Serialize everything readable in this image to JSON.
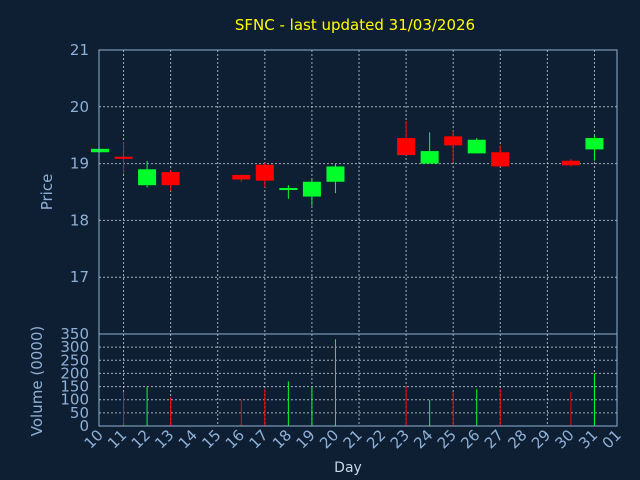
{
  "chart_data": {
    "type": "candlestick",
    "title": "SFNC - last updated 31/03/2026",
    "xlabel": "Day",
    "price_panel": {
      "ylabel": "Price",
      "ylim": [
        16.0,
        21.0
      ],
      "y_ticks": [
        17,
        18,
        19,
        20,
        21
      ],
      "grid": true
    },
    "volume_panel": {
      "ylabel": "Volume (0000)",
      "ylim": [
        0,
        350
      ],
      "y_ticks": [
        0,
        50,
        100,
        150,
        200,
        250,
        300,
        350
      ],
      "grid": true
    },
    "x_tick_labels": [
      "10",
      "11",
      "12",
      "13",
      "14",
      "15",
      "16",
      "17",
      "18",
      "19",
      "20",
      "21",
      "22",
      "23",
      "24",
      "25",
      "26",
      "27",
      "28",
      "29",
      "30",
      "31",
      "01"
    ],
    "up_color": "#00ff2a",
    "down_color": "#ff0000",
    "candles": [
      {
        "day": "10",
        "open": 19.2,
        "high": 19.26,
        "low": 19.2,
        "close": 19.26,
        "volume": 0
      },
      {
        "day": "11",
        "open": 19.12,
        "high": 19.38,
        "low": 18.82,
        "close": 19.1,
        "volume": 130
      },
      {
        "day": "12",
        "open": 18.62,
        "high": 19.05,
        "low": 18.58,
        "close": 18.9,
        "volume": 150
      },
      {
        "day": "13",
        "open": 18.85,
        "high": 18.88,
        "low": 18.52,
        "close": 18.62,
        "volume": 110
      },
      {
        "day": "16",
        "open": 18.8,
        "high": 18.8,
        "low": 18.68,
        "close": 18.72,
        "volume": 100
      },
      {
        "day": "17",
        "open": 18.98,
        "high": 19.02,
        "low": 18.58,
        "close": 18.7,
        "volume": 140
      },
      {
        "day": "18",
        "open": 18.56,
        "high": 18.62,
        "low": 18.38,
        "close": 18.57,
        "volume": 170
      },
      {
        "day": "19",
        "open": 18.42,
        "high": 18.72,
        "low": 18.26,
        "close": 18.68,
        "volume": 150
      },
      {
        "day": "20",
        "open": 18.68,
        "high": 19.0,
        "low": 18.48,
        "close": 18.95,
        "volume": 330
      },
      {
        "day": "23",
        "open": 19.45,
        "high": 19.75,
        "low": 19.15,
        "close": 19.15,
        "volume": 150
      },
      {
        "day": "24",
        "open": 19.0,
        "high": 19.55,
        "low": 19.0,
        "close": 19.22,
        "volume": 100
      },
      {
        "day": "25",
        "open": 19.48,
        "high": 19.58,
        "low": 19.02,
        "close": 19.32,
        "volume": 130
      },
      {
        "day": "26",
        "open": 19.18,
        "high": 19.45,
        "low": 19.18,
        "close": 19.42,
        "volume": 140
      },
      {
        "day": "27",
        "open": 19.2,
        "high": 19.32,
        "low": 18.95,
        "close": 18.95,
        "volume": 140
      },
      {
        "day": "30",
        "open": 19.05,
        "high": 19.08,
        "low": 18.95,
        "close": 18.97,
        "volume": 130
      },
      {
        "day": "31",
        "open": 19.25,
        "high": 19.5,
        "low": 19.05,
        "close": 19.45,
        "volume": 200
      }
    ]
  }
}
